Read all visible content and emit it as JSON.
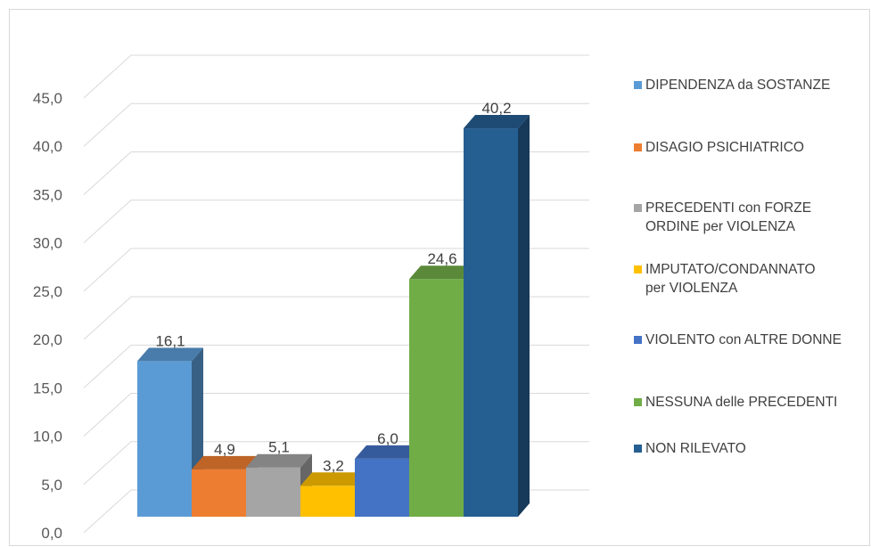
{
  "chart_data": {
    "type": "bar",
    "style": "3d-clustered-column",
    "categories": [
      "DIPENDENZA da SOSTANZE",
      "DISAGIO PSICHIATRICO",
      "PRECEDENTI con FORZE ORDINE per VIOLENZA",
      "IMPUTATO/CONDANNATO per VIOLENZA",
      "VIOLENTO con ALTRE DONNE",
      "NESSUNA delle PRECEDENTI",
      "NON RILEVATO"
    ],
    "values": [
      16.1,
      4.9,
      5.1,
      3.2,
      6.0,
      24.6,
      40.2
    ],
    "data_labels": [
      "16,1",
      "4,9",
      "5,1",
      "3,2",
      "6,0",
      "24,6",
      "40,2"
    ],
    "colors": [
      "#5b9bd5",
      "#ed7d31",
      "#a5a5a5",
      "#ffc000",
      "#4472c4",
      "#70ad47",
      "#255e91"
    ],
    "yticks": [
      "0,0",
      "5,0",
      "10,0",
      "15,0",
      "20,0",
      "25,0",
      "30,0",
      "35,0",
      "40,0",
      "45,0"
    ],
    "ylim": [
      0,
      45
    ],
    "grid": true,
    "legend_position": "right",
    "legend": [
      "DIPENDENZA da SOSTANZE",
      "DISAGIO PSICHIATRICO",
      "PRECEDENTI con FORZE\nORDINE per VIOLENZA",
      "IMPUTATO/CONDANNATO\nper VIOLENZA",
      "VIOLENTO con ALTRE DONNE",
      "NESSUNA delle PRECEDENTI",
      "NON RILEVATO"
    ],
    "title": "",
    "xlabel": "",
    "ylabel": ""
  }
}
